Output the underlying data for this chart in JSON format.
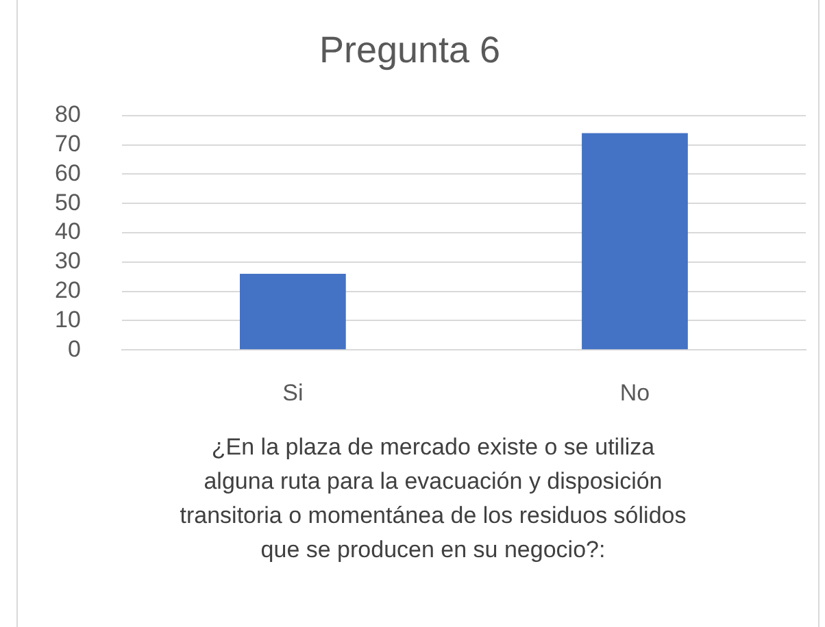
{
  "chart_data": {
    "type": "bar",
    "title": "Pregunta 6",
    "xlabel": "¿En la plaza de mercado existe o se utiliza alguna ruta para la evacuación y disposición transitoria o momentánea de los residuos sólidos que se producen en su negocio?:",
    "categories": [
      "Si",
      "No"
    ],
    "values": [
      26,
      74
    ],
    "color": "#4472c4",
    "ylim": [
      0,
      80
    ],
    "yticks": [
      0,
      10,
      20,
      30,
      40,
      50,
      60,
      70,
      80
    ],
    "grid": "y",
    "legend": false
  }
}
